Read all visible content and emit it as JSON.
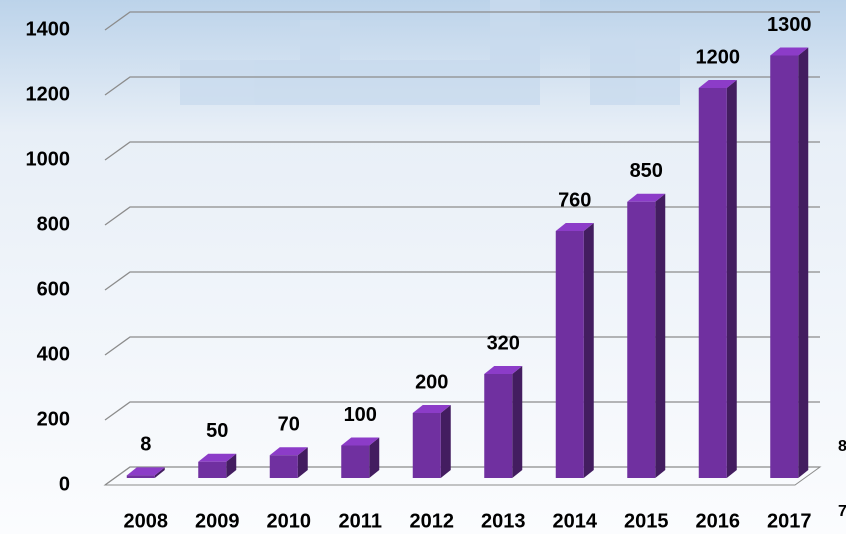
{
  "chart_data": {
    "type": "bar3d",
    "categories": [
      "2008",
      "2009",
      "2010",
      "2011",
      "2012",
      "2013",
      "2014",
      "2015",
      "2016",
      "2017"
    ],
    "values": [
      8,
      50,
      70,
      100,
      200,
      320,
      760,
      850,
      1200,
      1300
    ],
    "color": "#7030a0",
    "ylim": [
      0,
      1400
    ],
    "yticks": [
      0,
      200,
      400,
      600,
      800,
      1000,
      1200,
      1400
    ],
    "grid": true,
    "edge_fragments": [
      "8",
      "7"
    ]
  }
}
